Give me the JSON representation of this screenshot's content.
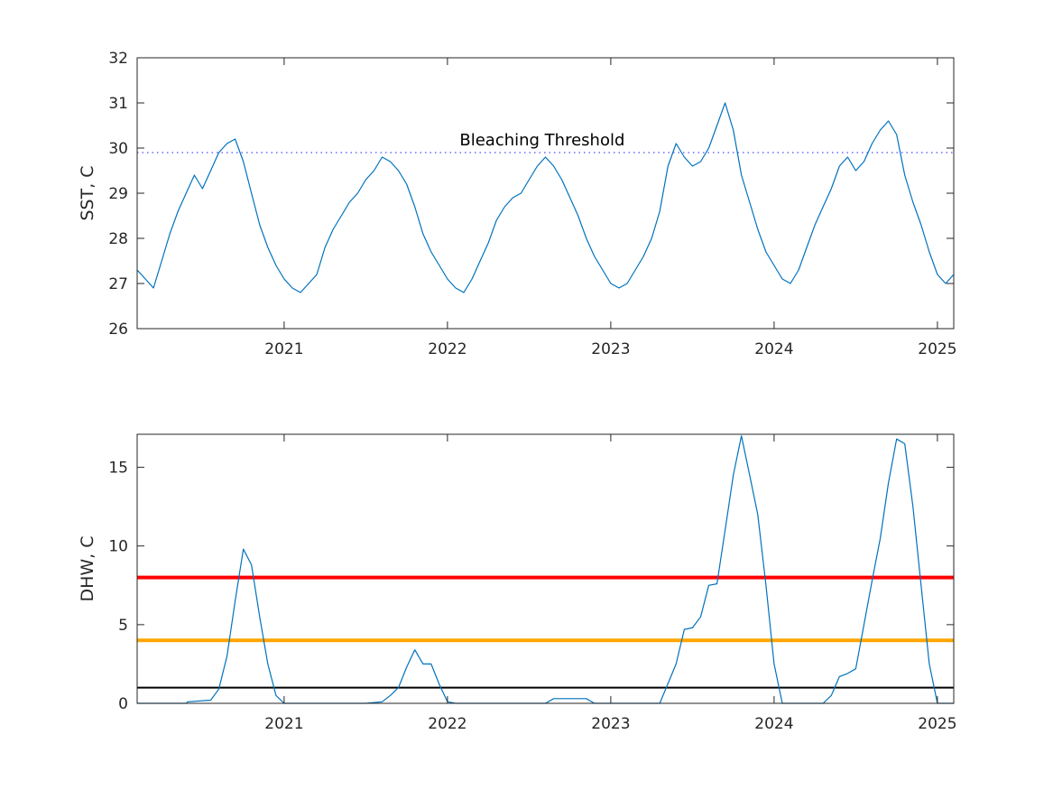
{
  "chart_data": [
    {
      "type": "line",
      "ylabel": "SST, C",
      "xlim": [
        2020.1,
        2025.1
      ],
      "ylim": [
        26,
        32
      ],
      "x_ticks": [
        "2021",
        "2022",
        "2023",
        "2024",
        "2025"
      ],
      "y_ticks": [
        "26",
        "27",
        "28",
        "29",
        "30",
        "31",
        "32"
      ],
      "grid": false,
      "series_color": "#0072BD",
      "threshold": {
        "value": 29.9,
        "label": "Bleaching Threshold",
        "color": "#4d4dff",
        "style": "dotted"
      },
      "series": [
        {
          "x": [
            2020.1,
            2020.15,
            2020.2,
            2020.25,
            2020.3,
            2020.35,
            2020.4,
            2020.45,
            2020.5,
            2020.55,
            2020.6,
            2020.65,
            2020.7,
            2020.75,
            2020.8,
            2020.85,
            2020.9,
            2020.95,
            2021.0,
            2021.05,
            2021.1,
            2021.15,
            2021.2,
            2021.25,
            2021.3,
            2021.35,
            2021.4,
            2021.45,
            2021.5,
            2021.55,
            2021.6,
            2021.65,
            2021.7,
            2021.75,
            2021.8,
            2021.85,
            2021.9,
            2021.95,
            2022.0,
            2022.05,
            2022.1,
            2022.15,
            2022.2,
            2022.25,
            2022.3,
            2022.35,
            2022.4,
            2022.45,
            2022.5,
            2022.55,
            2022.6,
            2022.65,
            2022.7,
            2022.75,
            2022.8,
            2022.85,
            2022.9,
            2022.95,
            2023.0,
            2023.05,
            2023.1,
            2023.15,
            2023.2,
            2023.25,
            2023.3,
            2023.35,
            2023.4,
            2023.45,
            2023.5,
            2023.55,
            2023.6,
            2023.65,
            2023.7,
            2023.75,
            2023.8,
            2023.85,
            2023.9,
            2023.95,
            2024.0,
            2024.05,
            2024.1,
            2024.15,
            2024.2,
            2024.25,
            2024.3,
            2024.35,
            2024.4,
            2024.45,
            2024.5,
            2024.55,
            2024.6,
            2024.65,
            2024.7,
            2024.75,
            2024.8,
            2024.85,
            2024.9,
            2024.95,
            2025.0,
            2025.05,
            2025.1
          ],
          "y": [
            27.3,
            27.1,
            26.9,
            27.5,
            28.1,
            28.6,
            29.0,
            29.4,
            29.1,
            29.5,
            29.9,
            30.1,
            30.2,
            29.7,
            29.0,
            28.3,
            27.8,
            27.4,
            27.1,
            26.9,
            26.8,
            27.0,
            27.2,
            27.8,
            28.2,
            28.5,
            28.8,
            29.0,
            29.3,
            29.5,
            29.8,
            29.7,
            29.5,
            29.2,
            28.7,
            28.1,
            27.7,
            27.4,
            27.1,
            26.9,
            26.8,
            27.1,
            27.5,
            27.9,
            28.4,
            28.7,
            28.9,
            29.0,
            29.3,
            29.6,
            29.8,
            29.6,
            29.3,
            28.9,
            28.5,
            28.0,
            27.6,
            27.3,
            27.0,
            26.9,
            27.0,
            27.3,
            27.6,
            28.0,
            28.6,
            29.6,
            30.1,
            29.8,
            29.6,
            29.7,
            30.0,
            30.5,
            31.0,
            30.4,
            29.4,
            28.8,
            28.2,
            27.7,
            27.4,
            27.1,
            27.0,
            27.3,
            27.8,
            28.3,
            28.7,
            29.1,
            29.6,
            29.8,
            29.5,
            29.7,
            30.1,
            30.4,
            30.6,
            30.3,
            29.4,
            28.8,
            28.3,
            27.7,
            27.2,
            27.0,
            27.2
          ]
        }
      ]
    },
    {
      "type": "line",
      "ylabel": "DHW, C",
      "xlim": [
        2020.1,
        2025.1
      ],
      "ylim": [
        0,
        17.1
      ],
      "x_ticks": [
        "2021",
        "2022",
        "2023",
        "2024",
        "2025"
      ],
      "y_ticks": [
        "0",
        "5",
        "10",
        "15"
      ],
      "grid": false,
      "series_color": "#0072BD",
      "reference_lines": [
        {
          "value": 8,
          "color": "#ff0000"
        },
        {
          "value": 4,
          "color": "#ffa500"
        },
        {
          "value": 1,
          "color": "#000000"
        }
      ],
      "series": [
        {
          "x": [
            2020.1,
            2020.4,
            2020.41,
            2020.55,
            2020.6,
            2020.65,
            2020.7,
            2020.75,
            2020.8,
            2020.85,
            2020.9,
            2020.95,
            2021.0,
            2021.5,
            2021.6,
            2021.65,
            2021.7,
            2021.75,
            2021.8,
            2021.85,
            2021.9,
            2021.95,
            2022.0,
            2022.05,
            2022.6,
            2022.65,
            2022.7,
            2022.85,
            2022.9,
            2023.0,
            2023.3,
            2023.4,
            2023.45,
            2023.5,
            2023.55,
            2023.6,
            2023.65,
            2023.7,
            2023.75,
            2023.8,
            2023.85,
            2023.9,
            2023.95,
            2024.0,
            2024.05,
            2024.3,
            2024.35,
            2024.4,
            2024.45,
            2024.5,
            2024.55,
            2024.6,
            2024.65,
            2024.7,
            2024.75,
            2024.8,
            2024.85,
            2024.9,
            2024.95,
            2025.0,
            2025.05,
            2025.1
          ],
          "y": [
            0,
            0,
            0.1,
            0.2,
            0.9,
            3.0,
            6.5,
            9.8,
            8.8,
            5.5,
            2.5,
            0.5,
            0,
            0,
            0.1,
            0.5,
            1.0,
            2.3,
            3.4,
            2.5,
            2.5,
            1.2,
            0.1,
            0,
            0,
            0.3,
            0.3,
            0.3,
            0,
            0,
            0,
            2.5,
            4.7,
            4.8,
            5.5,
            7.5,
            7.6,
            11.0,
            14.5,
            17.0,
            14.5,
            12.0,
            7.5,
            2.5,
            0,
            0,
            0.5,
            1.7,
            1.9,
            2.2,
            5.0,
            7.8,
            10.5,
            14.0,
            16.8,
            16.5,
            12.5,
            7.5,
            2.5,
            0,
            0,
            0
          ]
        }
      ]
    }
  ]
}
